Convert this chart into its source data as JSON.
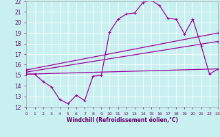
{
  "xlabel": "Windchill (Refroidissement éolien,°C)",
  "xlim": [
    0,
    23
  ],
  "ylim": [
    12,
    22
  ],
  "xticks": [
    0,
    1,
    2,
    3,
    4,
    5,
    6,
    7,
    8,
    9,
    10,
    11,
    12,
    13,
    14,
    15,
    16,
    17,
    18,
    19,
    20,
    21,
    22,
    23
  ],
  "yticks": [
    12,
    13,
    14,
    15,
    16,
    17,
    18,
    19,
    20,
    21,
    22
  ],
  "background_color": "#c8f0f0",
  "grid_color": "#ffffff",
  "line_color": "#990099",
  "curves": [
    {
      "x": [
        0,
        1,
        2,
        3,
        4,
        5,
        6,
        7,
        8,
        9,
        10,
        11,
        12,
        13,
        14,
        15,
        16,
        17,
        18,
        19,
        20,
        21,
        22,
        23
      ],
      "y": [
        15.1,
        15.1,
        14.4,
        13.9,
        12.7,
        12.3,
        13.1,
        12.6,
        14.9,
        15.0,
        19.1,
        20.3,
        20.8,
        20.9,
        21.9,
        22.1,
        21.6,
        20.4,
        20.3,
        18.9,
        20.3,
        17.8,
        15.1,
        15.6
      ]
    },
    {
      "x": [
        0,
        23
      ],
      "y": [
        15.1,
        15.6
      ]
    },
    {
      "x": [
        0,
        23
      ],
      "y": [
        15.3,
        18.2
      ]
    },
    {
      "x": [
        0,
        23
      ],
      "y": [
        15.5,
        19.0
      ]
    }
  ]
}
